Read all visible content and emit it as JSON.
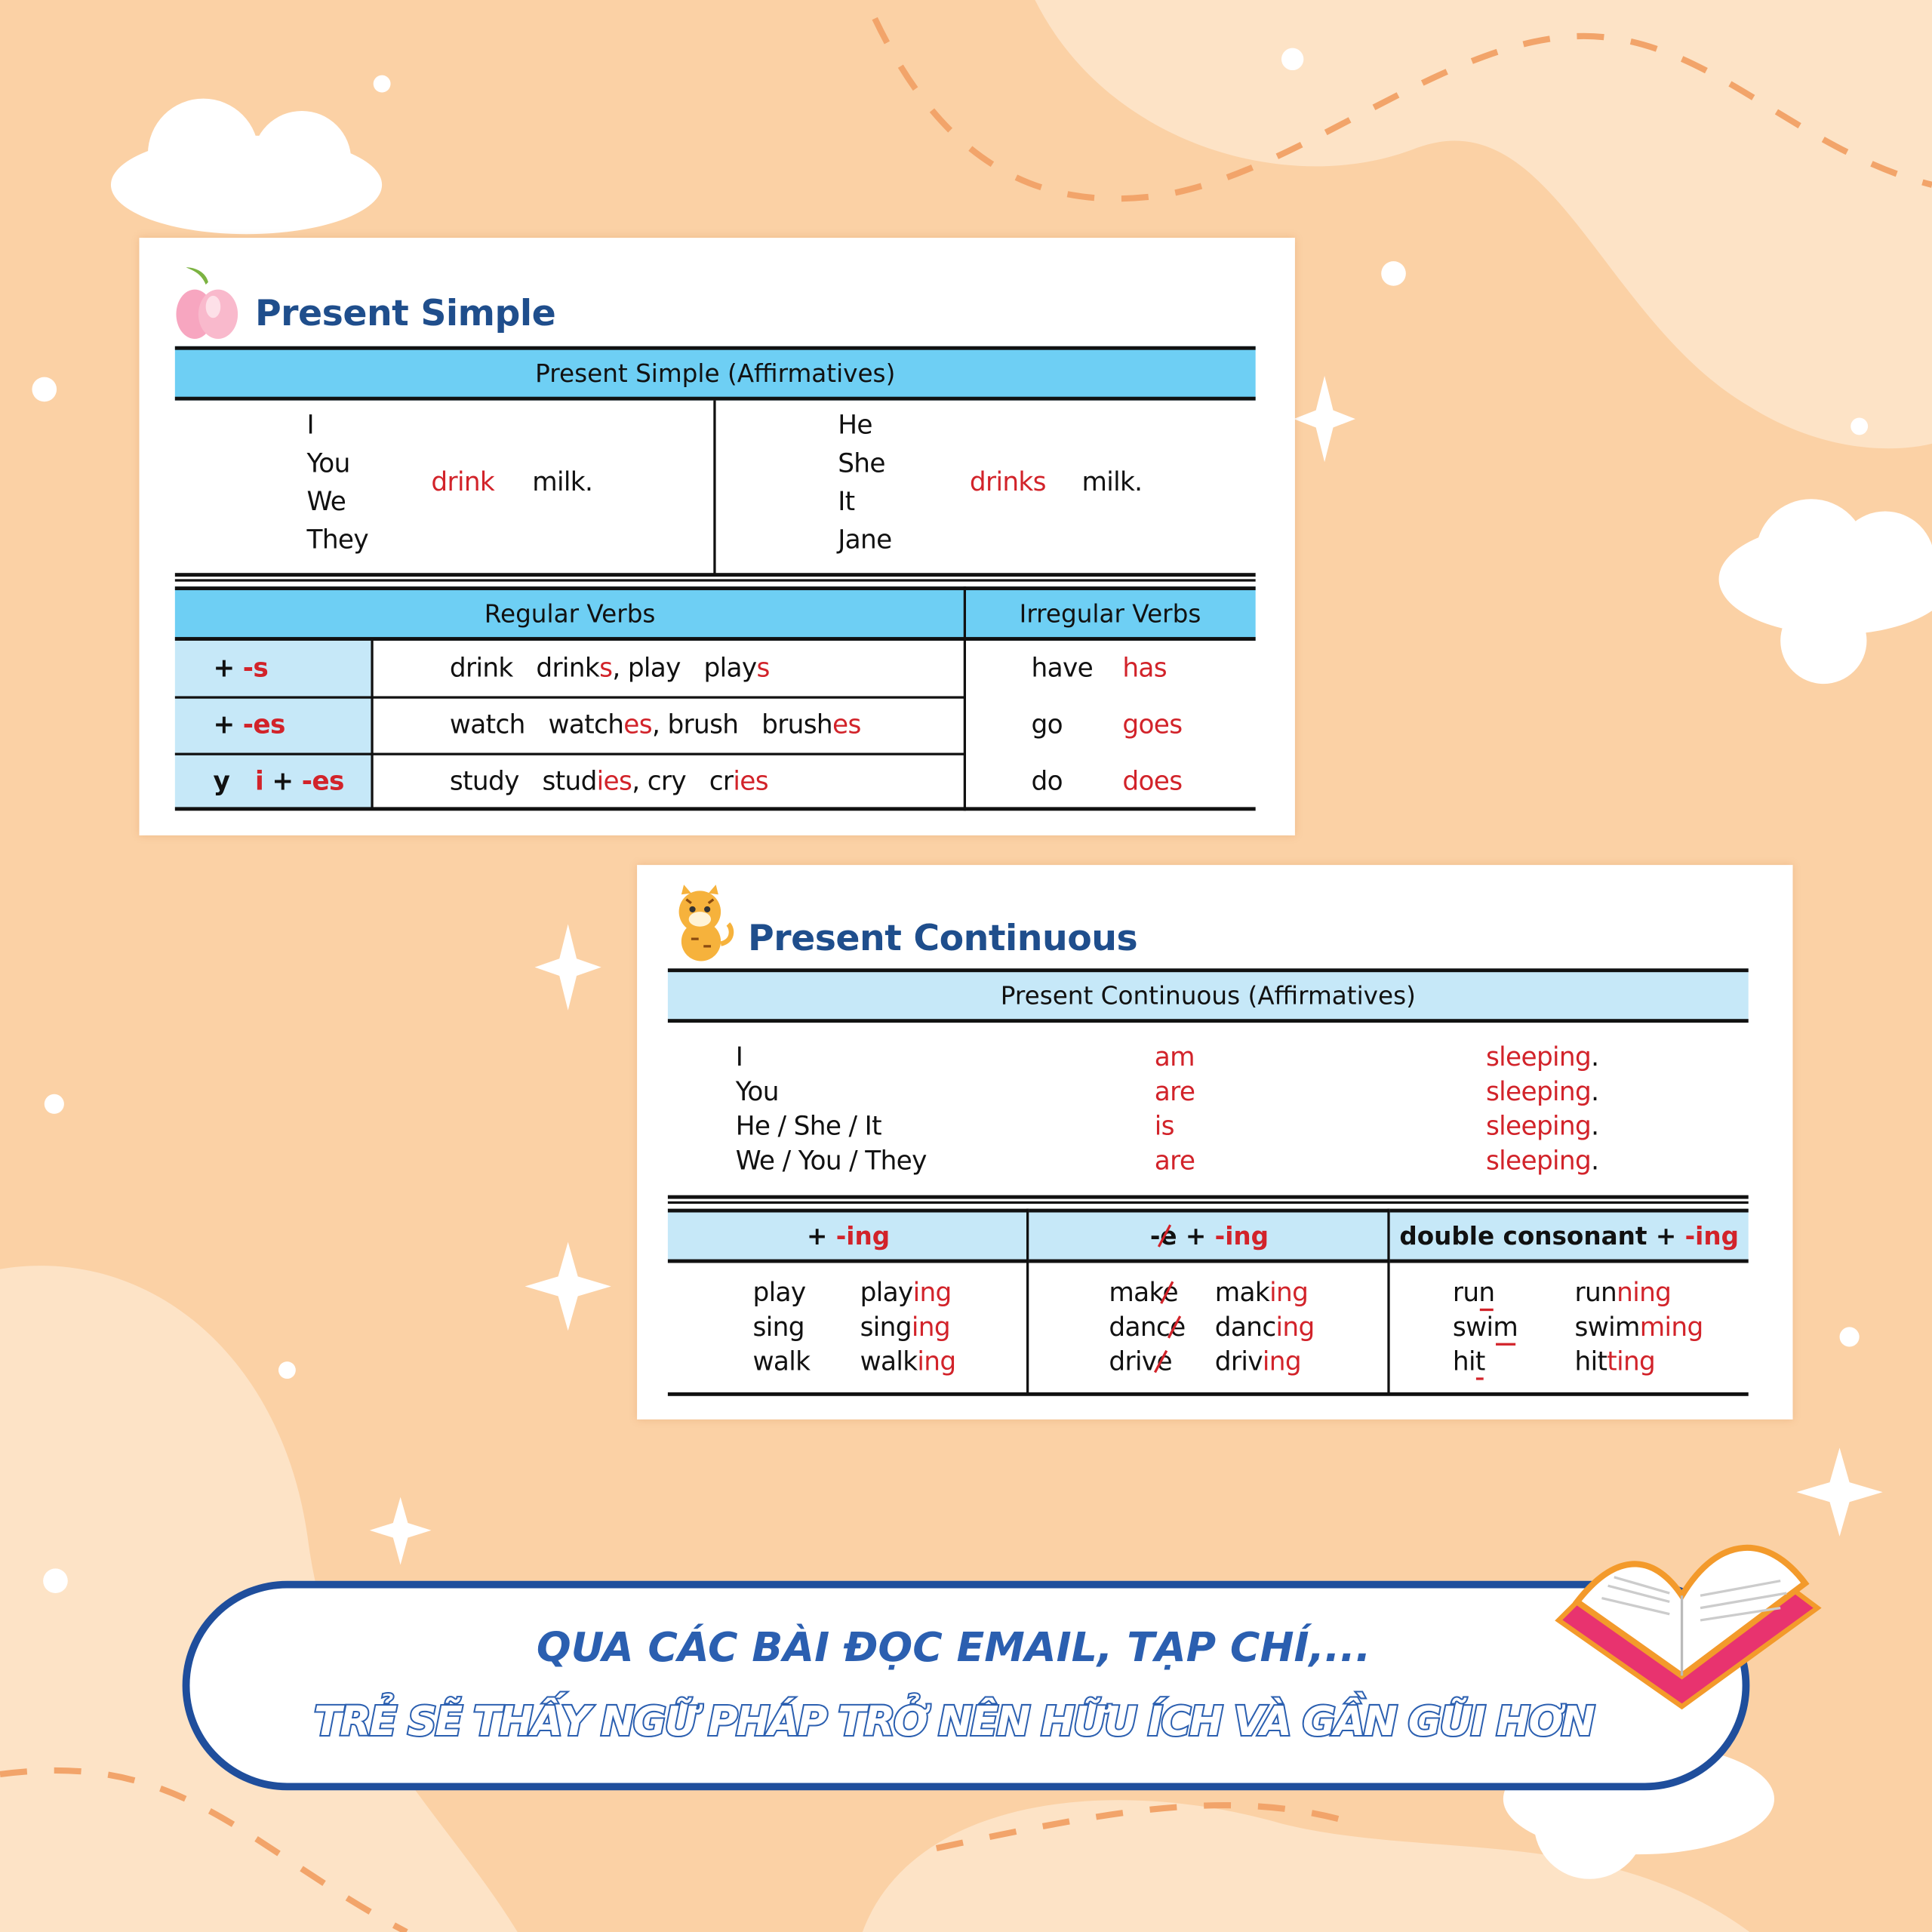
{
  "colors": {
    "background": "#fbd1a5",
    "header_blue": "#6ecff4",
    "light_blue": "#c6e8f8",
    "title_blue": "#1f4e8c",
    "red": "#d2232a",
    "banner_border": "#1f4e9c"
  },
  "present_simple": {
    "icon": "peach-icon",
    "title": "Present Simple",
    "affirm_header": "Present Simple (Affirmatives)",
    "left": {
      "subjects": [
        "I",
        "You",
        "We",
        "They"
      ],
      "verb": "drink",
      "object": "milk."
    },
    "right": {
      "subjects": [
        "He",
        "She",
        "It",
        "Jane"
      ],
      "verb": "drinks",
      "object": "milk."
    },
    "regular_header": "Regular Verbs",
    "irregular_header": "Irregular Verbs",
    "rows": [
      {
        "rule": [
          {
            "t": "+ ",
            "s": "k"
          },
          {
            "t": "-s",
            "s": "r"
          }
        ],
        "examples": [
          {
            "t": "drink",
            "s": "k"
          },
          {
            "t": "   drink",
            "s": "k"
          },
          {
            "t": "s",
            "s": "r"
          },
          {
            "t": ", play   play",
            "s": "k"
          },
          {
            "t": "s",
            "s": "r"
          }
        ],
        "irregular": {
          "base": "have",
          "form": "has"
        }
      },
      {
        "rule": [
          {
            "t": "+ ",
            "s": "k"
          },
          {
            "t": "-es",
            "s": "r"
          }
        ],
        "examples": [
          {
            "t": "watch",
            "s": "k"
          },
          {
            "t": "   watch",
            "s": "k"
          },
          {
            "t": "es",
            "s": "r"
          },
          {
            "t": ", brush   brush",
            "s": "k"
          },
          {
            "t": "es",
            "s": "r"
          }
        ],
        "irregular": {
          "base": "go",
          "form": "goes"
        }
      },
      {
        "rule": [
          {
            "t": "y   ",
            "s": "k"
          },
          {
            "t": "i",
            "s": "r"
          },
          {
            "t": " + ",
            "s": "k"
          },
          {
            "t": "-es",
            "s": "r"
          }
        ],
        "examples": [
          {
            "t": "study",
            "s": "k"
          },
          {
            "t": "   stud",
            "s": "k"
          },
          {
            "t": "ies",
            "s": "r"
          },
          {
            "t": ", cry   cr",
            "s": "k"
          },
          {
            "t": "ies",
            "s": "r"
          }
        ],
        "irregular": {
          "base": "do",
          "form": "does"
        }
      }
    ]
  },
  "present_continuous": {
    "icon": "tiger-cub-icon",
    "title": "Present Continuous",
    "affirm_header": "Present Continuous (Affirmatives)",
    "rows": [
      {
        "subject": "I",
        "aux": "am",
        "verb": "sleeping",
        "end": "."
      },
      {
        "subject": "You",
        "aux": "are",
        "verb": "sleeping",
        "end": "."
      },
      {
        "subject": "He / She / It",
        "aux": "is",
        "verb": "sleeping",
        "end": "."
      },
      {
        "subject": "We / You / They",
        "aux": "are",
        "verb": "sleeping",
        "end": "."
      }
    ],
    "columns": [
      {
        "header": [
          {
            "t": "+ ",
            "s": "k"
          },
          {
            "t": "-ing",
            "s": "r"
          }
        ],
        "pairs": [
          {
            "base": [
              {
                "t": "play",
                "s": "k"
              }
            ],
            "form": [
              {
                "t": "play",
                "s": "k"
              },
              {
                "t": "ing",
                "s": "r"
              }
            ]
          },
          {
            "base": [
              {
                "t": "sing",
                "s": "k"
              }
            ],
            "form": [
              {
                "t": "sing",
                "s": "k"
              },
              {
                "t": "ing",
                "s": "r"
              }
            ]
          },
          {
            "base": [
              {
                "t": "walk",
                "s": "k"
              }
            ],
            "form": [
              {
                "t": "walk",
                "s": "k"
              },
              {
                "t": "ing",
                "s": "r"
              }
            ]
          }
        ]
      },
      {
        "header": [
          {
            "t": "-",
            "s": "k"
          },
          {
            "t": "e",
            "s": "x"
          },
          {
            "t": " + ",
            "s": "k"
          },
          {
            "t": "-ing",
            "s": "r"
          }
        ],
        "pairs": [
          {
            "base": [
              {
                "t": "mak",
                "s": "k"
              },
              {
                "t": "e",
                "s": "x"
              }
            ],
            "form": [
              {
                "t": "mak",
                "s": "k"
              },
              {
                "t": "ing",
                "s": "r"
              }
            ]
          },
          {
            "base": [
              {
                "t": "danc",
                "s": "k"
              },
              {
                "t": "e",
                "s": "x"
              }
            ],
            "form": [
              {
                "t": "danc",
                "s": "k"
              },
              {
                "t": "ing",
                "s": "r"
              }
            ]
          },
          {
            "base": [
              {
                "t": "driv",
                "s": "k"
              },
              {
                "t": "e",
                "s": "x"
              }
            ],
            "form": [
              {
                "t": "driv",
                "s": "k"
              },
              {
                "t": "ing",
                "s": "r"
              }
            ]
          }
        ]
      },
      {
        "header": [
          {
            "t": "double consonant + ",
            "s": "k"
          },
          {
            "t": "-ing",
            "s": "r"
          }
        ],
        "pairs": [
          {
            "base": [
              {
                "t": "ru",
                "s": "k"
              },
              {
                "t": "n",
                "s": "u"
              }
            ],
            "form": [
              {
                "t": "run",
                "s": "k"
              },
              {
                "t": "ning",
                "s": "r"
              }
            ]
          },
          {
            "base": [
              {
                "t": "swi",
                "s": "k"
              },
              {
                "t": "m",
                "s": "u"
              }
            ],
            "form": [
              {
                "t": "swim",
                "s": "k"
              },
              {
                "t": "ming",
                "s": "r"
              }
            ]
          },
          {
            "base": [
              {
                "t": "hi",
                "s": "k"
              },
              {
                "t": "t",
                "s": "u"
              }
            ],
            "form": [
              {
                "t": "hit",
                "s": "k"
              },
              {
                "t": "ting",
                "s": "r"
              }
            ]
          }
        ]
      }
    ]
  },
  "banner": {
    "line1": "QUA CÁC BÀI ĐỌC EMAIL, TẠP CHÍ,...",
    "line2": "TRẺ SẼ THẤY NGỮ PHÁP TRỞ NÊN HỮU ÍCH VÀ GẦN GŨI HƠN",
    "icon": "open-book-icon"
  }
}
